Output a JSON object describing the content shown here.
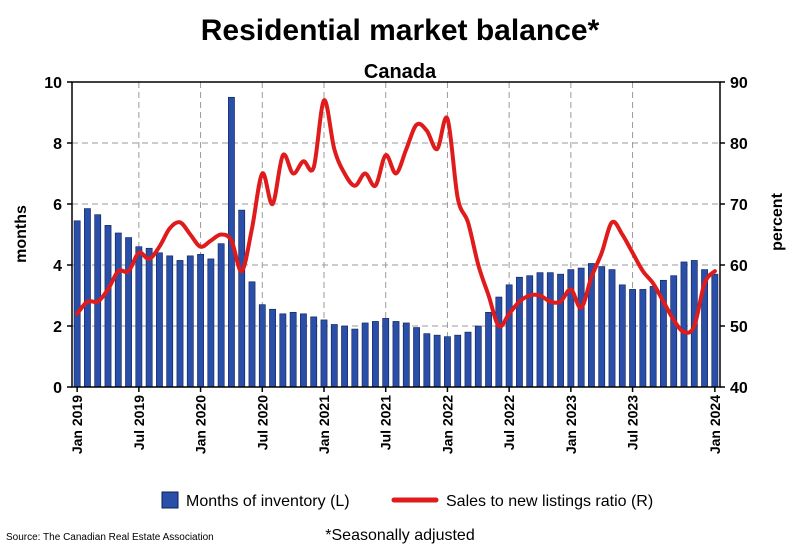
{
  "chart_data": {
    "type": "bar+line",
    "title": "Residential market balance*",
    "subtitle": "Canada",
    "ylabel_left": "months",
    "ylabel_right": "percent",
    "ylim_left": [
      0,
      10
    ],
    "ylim_right": [
      40,
      90
    ],
    "yticks_left": [
      "0",
      "2",
      "4",
      "6",
      "8",
      "10"
    ],
    "yticks_right": [
      "40",
      "50",
      "60",
      "70",
      "80",
      "90"
    ],
    "xtick_labels": [
      "Jan 2019",
      "Jul 2019",
      "Jan 2020",
      "Jul 2020",
      "Jan 2021",
      "Jul 2021",
      "Jan 2022",
      "Jul 2022",
      "Jan 2023",
      "Jul 2023",
      "Jan 2024"
    ],
    "x_start": "Jan 2019",
    "x_end": "Jan 2024",
    "grid": true,
    "legend_position": "bottom",
    "series": [
      {
        "name": "Months of inventory (L)",
        "kind": "bar",
        "axis": "left",
        "color": "#2a4fa8",
        "values": [
          5.45,
          5.85,
          5.65,
          5.3,
          5.05,
          4.9,
          4.6,
          4.55,
          4.4,
          4.3,
          4.15,
          4.3,
          4.35,
          4.2,
          4.7,
          9.5,
          5.8,
          3.45,
          2.7,
          2.55,
          2.4,
          2.45,
          2.4,
          2.3,
          2.2,
          2.05,
          2.0,
          1.9,
          2.1,
          2.15,
          2.25,
          2.15,
          2.1,
          1.95,
          1.75,
          1.7,
          1.65,
          1.7,
          1.8,
          2.0,
          2.45,
          2.95,
          3.35,
          3.6,
          3.65,
          3.75,
          3.75,
          3.7,
          3.85,
          3.9,
          4.05,
          3.95,
          3.85,
          3.35,
          3.2,
          3.2,
          3.3,
          3.5,
          3.65,
          4.1,
          4.15,
          3.85,
          3.7
        ]
      },
      {
        "name": "Sales to new listings ratio (R)",
        "kind": "line",
        "axis": "right",
        "color": "#e01b1b",
        "values": [
          52,
          54,
          54,
          56,
          59,
          59,
          62,
          61,
          63,
          66,
          67,
          65,
          63,
          64,
          65,
          64,
          59,
          66,
          75,
          70,
          78,
          75,
          77,
          76,
          87,
          79,
          75,
          73,
          75,
          73,
          78,
          75,
          79,
          83,
          82,
          79,
          84,
          71,
          67,
          60,
          55,
          50,
          52,
          54,
          55,
          55,
          54,
          54,
          56,
          53,
          58,
          62,
          67,
          65,
          62,
          59,
          57,
          54,
          51,
          49,
          50,
          57,
          59
        ]
      }
    ]
  },
  "source": "Source: The Canadian Real Estate Association",
  "note": "*Seasonally adjusted"
}
